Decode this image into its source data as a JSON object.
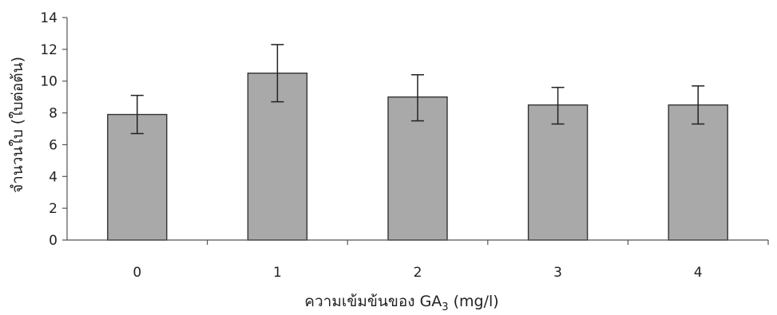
{
  "chart_data": {
    "type": "bar",
    "categories": [
      "0",
      "1",
      "2",
      "3",
      "4"
    ],
    "values": [
      7.9,
      10.5,
      9.0,
      8.5,
      8.5
    ],
    "error_high": [
      9.1,
      12.3,
      10.4,
      9.6,
      9.7
    ],
    "error_low": [
      6.7,
      8.7,
      7.5,
      7.3,
      7.3
    ],
    "ylabel": "จำนวนใบ (ใบต่อต้น)",
    "xlabel_prefix": "ความเข้มข้นของ GA",
    "xlabel_sub": "3",
    "xlabel_suffix": " (mg/l)",
    "ylim": [
      0,
      14
    ],
    "yticks": [
      "0",
      "2",
      "4",
      "6",
      "8",
      "10",
      "12",
      "14"
    ],
    "grid": false,
    "bar_color": "#a9a9a9"
  }
}
